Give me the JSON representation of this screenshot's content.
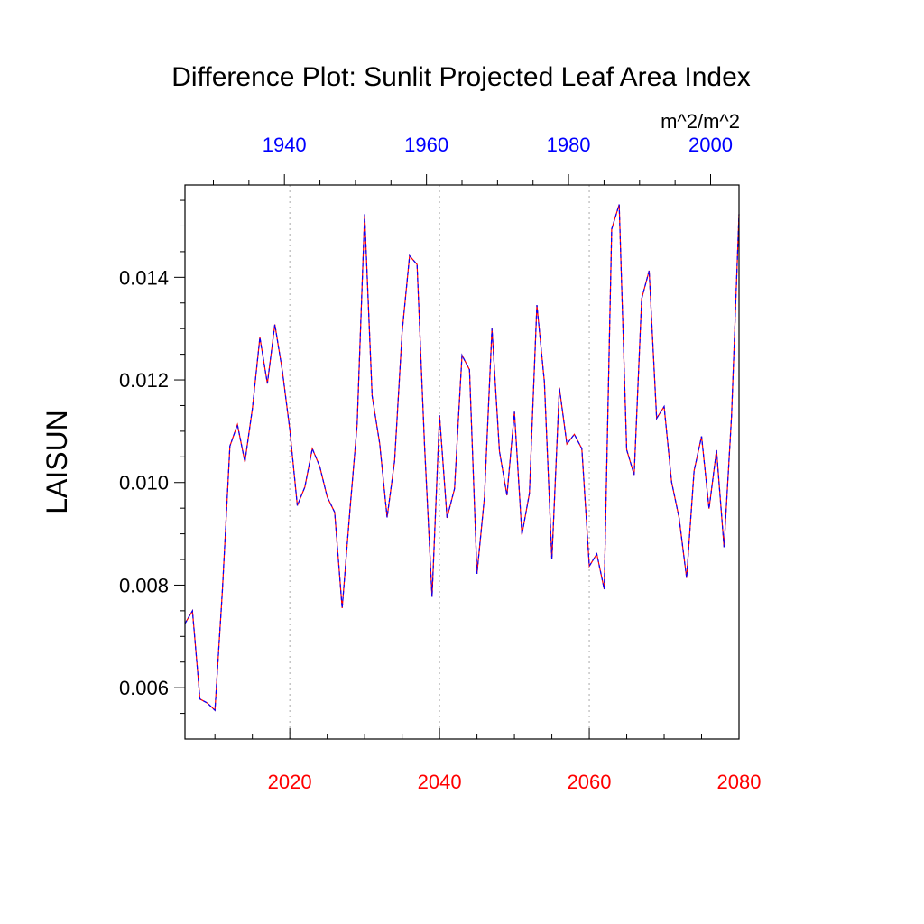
{
  "chart_data": {
    "type": "line",
    "title": "Difference Plot: Sunlit Projected Leaf Area Index",
    "ylabel": "LAISUN",
    "units": "m^2/m^2",
    "ylim": [
      0.005,
      0.0158
    ],
    "y_ticks": [
      "0.006",
      "0.008",
      "0.010",
      "0.012",
      "0.014"
    ],
    "bottom_axis": {
      "range": [
        2006,
        2080
      ],
      "ticks": [
        "2020",
        "2040",
        "2060",
        "2080"
      ],
      "color": "#ff0000"
    },
    "top_axis": {
      "range": [
        1926,
        2004
      ],
      "ticks": [
        "1940",
        "1960",
        "1980",
        "2000"
      ],
      "color": "#0000ff"
    },
    "grid": "dotted vertical lines at major bottom ticks",
    "colors": {
      "series_a": "#ff0000",
      "series_b": "#0000ff"
    },
    "x": [
      2006,
      2007,
      2008,
      2009,
      2010,
      2011,
      2012,
      2013,
      2014,
      2015,
      2016,
      2017,
      2018,
      2019,
      2020,
      2021,
      2022,
      2023,
      2024,
      2025,
      2026,
      2027,
      2028,
      2029,
      2030,
      2031,
      2032,
      2033,
      2034,
      2035,
      2036,
      2037,
      2038,
      2039,
      2040,
      2041,
      2042,
      2043,
      2044,
      2045,
      2046,
      2047,
      2048,
      2049,
      2050,
      2051,
      2052,
      2053,
      2054,
      2055,
      2056,
      2057,
      2058,
      2059,
      2060,
      2061,
      2062,
      2063,
      2064,
      2065,
      2066,
      2067,
      2068,
      2069,
      2070,
      2071,
      2072,
      2073,
      2074,
      2075,
      2076,
      2077,
      2078,
      2079,
      2080
    ],
    "series": [
      {
        "values": [
          0.00725,
          0.0075,
          0.00578,
          0.0057,
          0.00556,
          0.00791,
          0.01071,
          0.01113,
          0.0104,
          0.01144,
          0.01283,
          0.01193,
          0.01308,
          0.01218,
          0.01103,
          0.00955,
          0.00991,
          0.01066,
          0.01031,
          0.00972,
          0.00942,
          0.00755,
          0.0094,
          0.01113,
          0.01523,
          0.01169,
          0.01077,
          0.00932,
          0.01042,
          0.01292,
          0.01442,
          0.01425,
          0.01072,
          0.00777,
          0.01131,
          0.00931,
          0.00988,
          0.01248,
          0.0122,
          0.00822,
          0.00972,
          0.013,
          0.01061,
          0.00975,
          0.01138,
          0.00898,
          0.00979,
          0.01346,
          0.01196,
          0.0085,
          0.01185,
          0.01075,
          0.01094,
          0.01066,
          0.00837,
          0.00861,
          0.00792,
          0.01494,
          0.01542,
          0.01064,
          0.01015,
          0.01358,
          0.01413,
          0.01125,
          0.01148,
          0.01001,
          0.00931,
          0.00814,
          0.01023,
          0.0109,
          0.00949,
          0.01063,
          0.00874,
          0.01129,
          0.01523
        ]
      }
    ]
  }
}
